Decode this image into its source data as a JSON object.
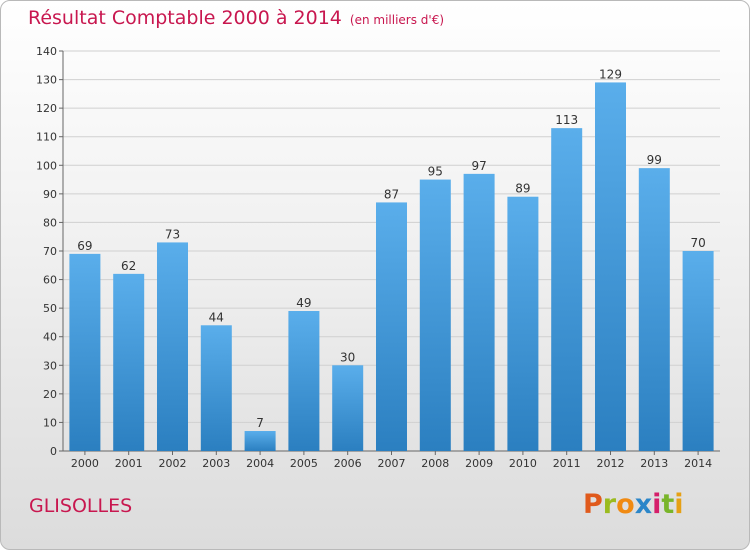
{
  "header": {
    "title": "Résultat Comptable 2000 à 2014",
    "subtitle": "(en milliers d'€)"
  },
  "footer": {
    "commune": "GLISOLLES",
    "logo_letters": [
      "P",
      "r",
      "o",
      "x",
      "i",
      "t",
      "i"
    ],
    "logo_colors": [
      "#e05a1c",
      "#9bbb1f",
      "#f08a12",
      "#2b86c9",
      "#d51f6a",
      "#79b52a",
      "#e6a014"
    ]
  },
  "chart_data": {
    "type": "bar",
    "categories": [
      "2000",
      "2001",
      "2002",
      "2003",
      "2004",
      "2005",
      "2006",
      "2007",
      "2008",
      "2009",
      "2010",
      "2011",
      "2012",
      "2013",
      "2014"
    ],
    "values": [
      69,
      62,
      73,
      44,
      7,
      49,
      30,
      87,
      95,
      97,
      89,
      113,
      129,
      99,
      70
    ],
    "ylim": [
      0,
      140
    ],
    "yticks": [
      0,
      10,
      20,
      30,
      40,
      50,
      60,
      70,
      80,
      90,
      100,
      110,
      120,
      130,
      140
    ],
    "grid": true,
    "bar_color_top": "#5aaeeb",
    "bar_color_bottom": "#2b7fc0"
  }
}
